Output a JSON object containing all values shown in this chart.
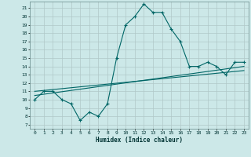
{
  "xlabel": "Humidex (Indice chaleur)",
  "background_color": "#cce8e8",
  "grid_color": "#b0c8c8",
  "line_color": "#006666",
  "xlim": [
    -0.5,
    23.5
  ],
  "ylim": [
    6.5,
    21.8
  ],
  "yticks": [
    7,
    8,
    9,
    10,
    11,
    12,
    13,
    14,
    15,
    16,
    17,
    18,
    19,
    20,
    21
  ],
  "xticks": [
    0,
    1,
    2,
    3,
    4,
    5,
    6,
    7,
    8,
    9,
    10,
    11,
    12,
    13,
    14,
    15,
    16,
    17,
    18,
    19,
    20,
    21,
    22,
    23
  ],
  "main_x": [
    0,
    1,
    2,
    3,
    4,
    5,
    6,
    7,
    8,
    9,
    10,
    11,
    12,
    13,
    14,
    15,
    16,
    17,
    18,
    19,
    20,
    21,
    22,
    23
  ],
  "main_y": [
    10,
    11,
    11,
    10,
    9.5,
    7.5,
    8.5,
    8,
    9.5,
    15,
    19,
    20,
    21.5,
    20.5,
    20.5,
    18.5,
    17,
    14,
    14,
    14.5,
    14,
    13,
    14.5,
    14.5
  ],
  "line2_x": [
    0,
    23
  ],
  "line2_y": [
    10.5,
    14.0
  ],
  "line3_x": [
    0,
    23
  ],
  "line3_y": [
    11.0,
    13.5
  ]
}
